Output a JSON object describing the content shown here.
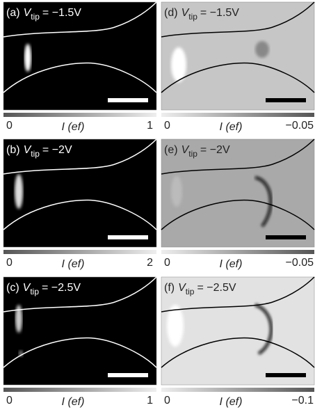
{
  "panels": [
    {
      "label": "(a)",
      "symbol": "V",
      "sub": "tip",
      "value": "= −1.5V",
      "cbar_min": "0",
      "cbar_axis": "I (ef)",
      "cbar_max": "1"
    },
    {
      "label": "(d)",
      "symbol": "V",
      "sub": "tip",
      "value": "= −1.5V",
      "cbar_min": "0",
      "cbar_axis": "I (ef)",
      "cbar_max": "−0.05"
    },
    {
      "label": "(b)",
      "symbol": "V",
      "sub": "tip",
      "value": "= −2V",
      "cbar_min": "0",
      "cbar_axis": "I (ef)",
      "cbar_max": "2"
    },
    {
      "label": "(e)",
      "symbol": "V",
      "sub": "tip",
      "value": "= −2V",
      "cbar_min": "0",
      "cbar_axis": "I (ef)",
      "cbar_max": "−0.05"
    },
    {
      "label": "(c)",
      "symbol": "V",
      "sub": "tip",
      "value": "= −2.5V",
      "cbar_min": "0",
      "cbar_axis": "I (ef)",
      "cbar_max": "1"
    },
    {
      "label": "(f)",
      "symbol": "V",
      "sub": "tip",
      "value": "= −2.5V",
      "cbar_min": "0",
      "cbar_axis": "I (ef)",
      "cbar_max": "−0.1"
    }
  ]
}
